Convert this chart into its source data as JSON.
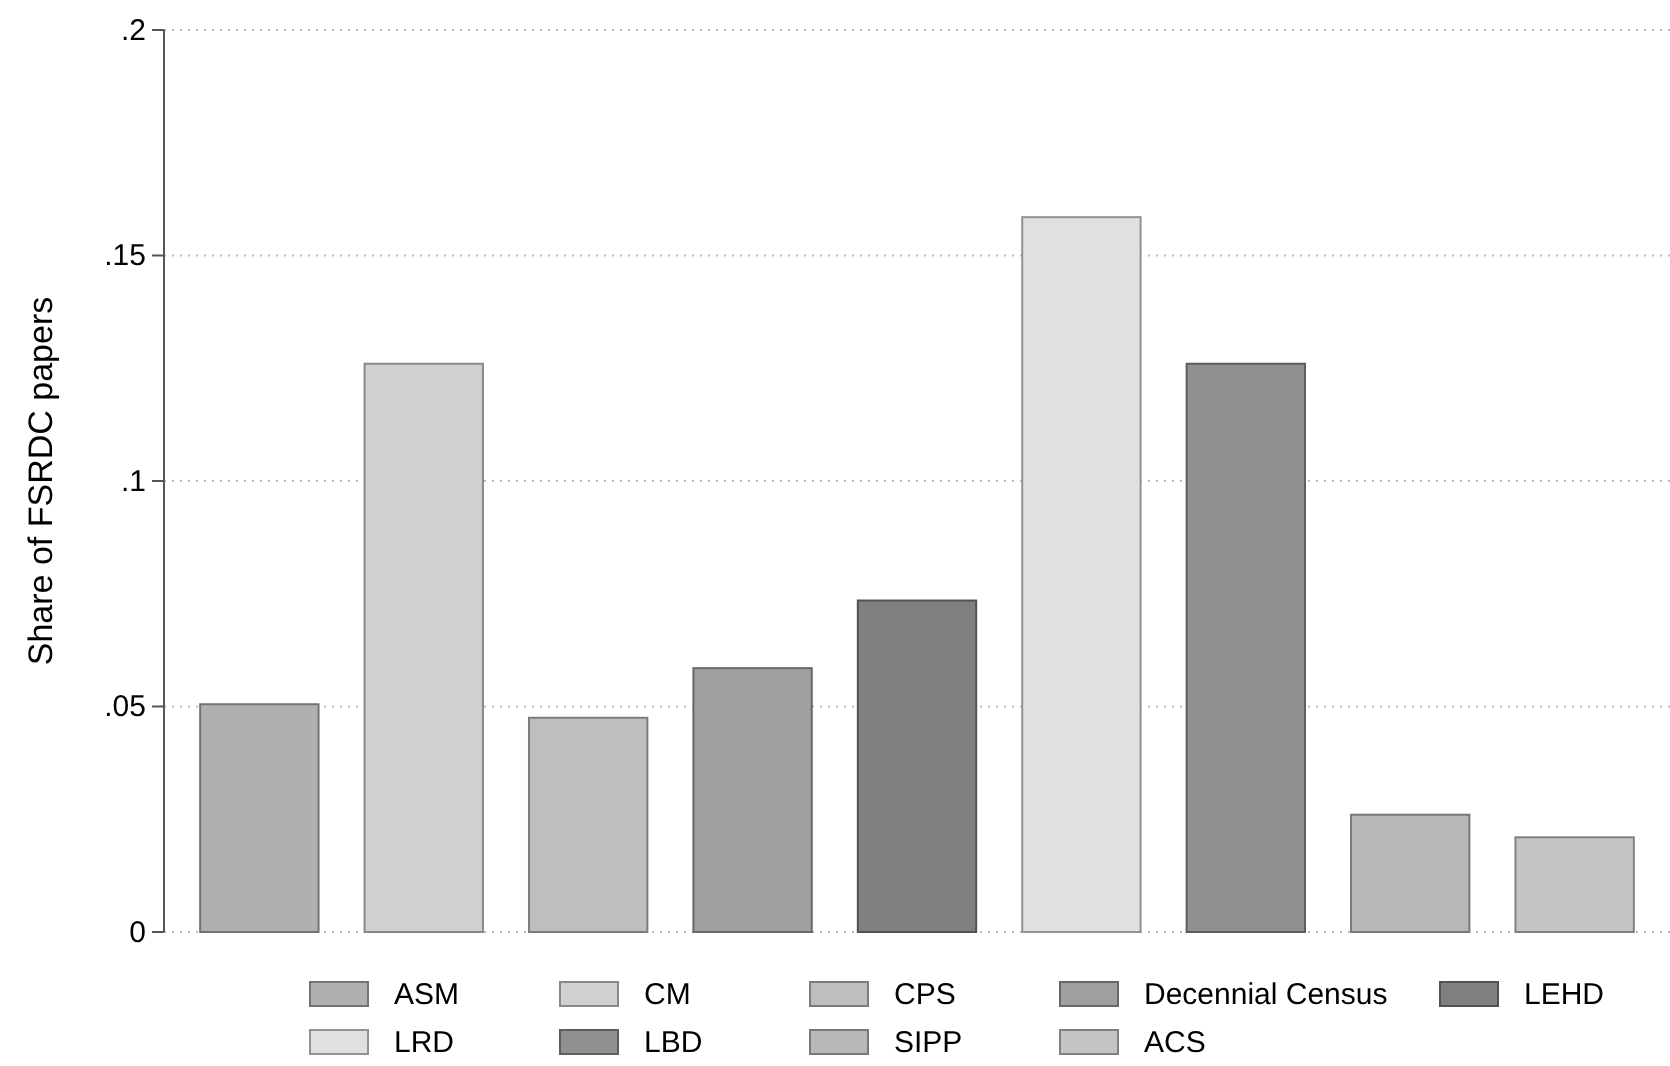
{
  "chart_data": {
    "type": "bar",
    "ylabel": "Share of FSRDC papers",
    "categories": [
      null,
      null,
      null,
      null,
      null,
      null,
      null,
      null,
      null
    ],
    "series": [
      {
        "name": "ASM",
        "color": "#b0b0b0",
        "values": [
          0.0505,
          null,
          null,
          null,
          null,
          null,
          null,
          null,
          null
        ]
      },
      {
        "name": "CM",
        "color": "#d0d0d0",
        "values": [
          null,
          0.126,
          null,
          null,
          null,
          null,
          null,
          null,
          null
        ]
      },
      {
        "name": "CPS",
        "color": "#bebebe",
        "values": [
          null,
          null,
          0.0475,
          null,
          null,
          null,
          null,
          null,
          null
        ]
      },
      {
        "name": "Decennial Census",
        "color": "#a0a0a0",
        "values": [
          null,
          null,
          null,
          0.0585,
          null,
          null,
          null,
          null,
          null
        ]
      },
      {
        "name": "LEHD",
        "color": "#808080",
        "values": [
          null,
          null,
          null,
          null,
          0.0735,
          null,
          null,
          null,
          null
        ]
      },
      {
        "name": "LRD",
        "color": "#e0e0e0",
        "values": [
          null,
          null,
          null,
          null,
          null,
          0.1585,
          null,
          null,
          null
        ]
      },
      {
        "name": "LBD",
        "color": "#909090",
        "values": [
          null,
          null,
          null,
          null,
          null,
          null,
          0.126,
          null,
          null
        ]
      },
      {
        "name": "SIPP",
        "color": "#b8b8b8",
        "values": [
          null,
          null,
          null,
          null,
          null,
          null,
          null,
          0.026,
          null
        ]
      },
      {
        "name": "ACS",
        "color": "#c4c4c4",
        "values": [
          null,
          null,
          null,
          null,
          null,
          null,
          null,
          null,
          0.021
        ]
      }
    ],
    "ylim": [
      0,
      0.2
    ],
    "yticks": [
      {
        "value": 0,
        "label": "0"
      },
      {
        "value": 0.05,
        "label": ".05"
      },
      {
        "value": 0.1,
        "label": ".1"
      },
      {
        "value": 0.15,
        "label": ".15"
      },
      {
        "value": 0.2,
        "label": ".2"
      }
    ],
    "grid": "y",
    "legend": "bottom"
  }
}
